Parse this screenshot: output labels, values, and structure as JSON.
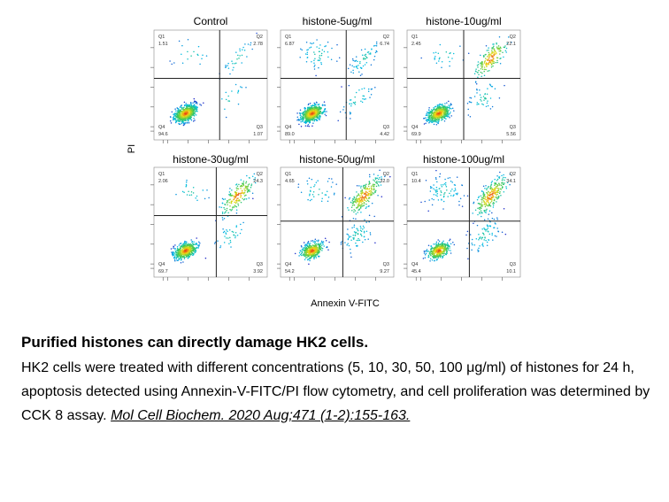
{
  "figure": {
    "y_axis_label": "PI",
    "x_axis_label": "Annexin V-FITC",
    "quadrant_labels": [
      "Q1",
      "Q2",
      "Q3",
      "Q4"
    ]
  },
  "chart_data": [
    {
      "type": "scatter",
      "title": "Control",
      "quadrants": {
        "Q1": "1.51",
        "Q2": "2.78",
        "Q3": "1.07",
        "Q4": "94.6"
      },
      "gate": [
        0.58,
        0.44
      ]
    },
    {
      "type": "scatter",
      "title": "histone-5ug/ml",
      "quadrants": {
        "Q1": "6.87",
        "Q2": "6.74",
        "Q3": "4.42",
        "Q4": "89.0"
      },
      "gate": [
        0.58,
        0.44
      ]
    },
    {
      "type": "scatter",
      "title": "histone-10ug/ml",
      "quadrants": {
        "Q1": "2.45",
        "Q2": "22.1",
        "Q3": "5.56",
        "Q4": "69.9"
      },
      "gate": [
        0.5,
        0.44
      ]
    },
    {
      "type": "scatter",
      "title": "histone-30ug/ml",
      "quadrants": {
        "Q1": "2.06",
        "Q2": "24.3",
        "Q3": "3.92",
        "Q4": "69.7"
      },
      "gate": [
        0.55,
        0.44
      ]
    },
    {
      "type": "scatter",
      "title": "histone-50ug/ml",
      "quadrants": {
        "Q1": "4.65",
        "Q2": "32.0",
        "Q3": "9.27",
        "Q4": "54.2"
      },
      "gate": [
        0.55,
        0.49
      ]
    },
    {
      "type": "scatter",
      "title": "histone-100ug/ml",
      "quadrants": {
        "Q1": "10.4",
        "Q2": "34.1",
        "Q3": "10.1",
        "Q4": "45.4"
      },
      "gate": [
        0.55,
        0.49
      ]
    }
  ],
  "caption": {
    "title": "Purified histones can directly damage HK2 cells.",
    "body": "HK2 cells were treated with different concentrations (5, 10, 30, 50, 100 μg/ml) of histones for 24 h, apoptosis detected using Annexin-V-FITC/PI flow cytometry, and cell proliferation was determined by CCK 8 assay. ",
    "citation": "Mol Cell Biochem. 2020 Aug;471 (1-2):155-163."
  }
}
